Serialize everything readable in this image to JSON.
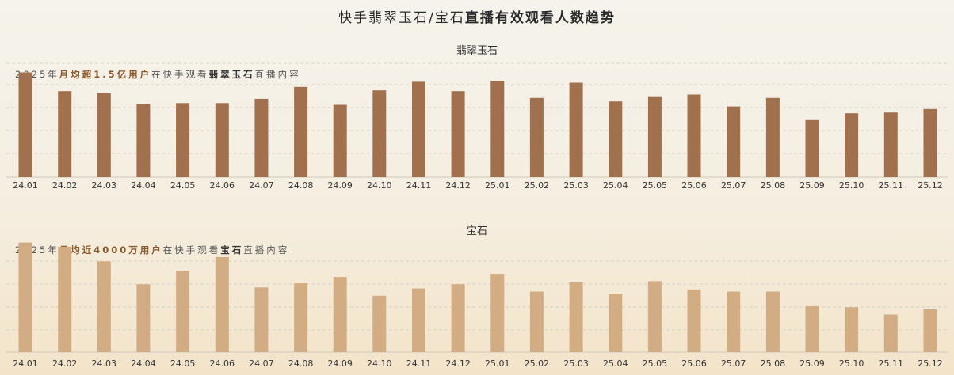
{
  "title": {
    "platform_part": "快手翡翠玉石/宝石",
    "bold_part": "直播有效观看人数趋势"
  },
  "charts": [
    {
      "id": "jade",
      "panel_title": "翡翠玉石",
      "subtitle": {
        "prefix": "2025年",
        "highlight": "月均超1.5亿用户",
        "middle": "在快手观看",
        "category": "翡翠玉石",
        "suffix": "直播内容"
      }
    },
    {
      "id": "gem",
      "panel_title": "宝石",
      "subtitle": {
        "prefix": "2025年",
        "highlight": "月均近4000万用户",
        "middle": "在快手观看",
        "category": "宝石",
        "suffix": "直播内容"
      }
    }
  ],
  "chart_data": [
    {
      "type": "bar",
      "title": "翡翠玉石",
      "categories": [
        "24.01",
        "24.02",
        "24.03",
        "24.04",
        "24.05",
        "24.06",
        "24.07",
        "24.08",
        "24.09",
        "24.10",
        "24.11",
        "24.12",
        "25.01",
        "25.02",
        "25.03",
        "25.04",
        "25.05",
        "25.06",
        "25.07",
        "25.08",
        "25.09",
        "25.10",
        "25.11",
        "25.12"
      ],
      "values": [
        123,
        101,
        99,
        86,
        87,
        87,
        92,
        106,
        85,
        102,
        112,
        101,
        113,
        93,
        111,
        89,
        95,
        97,
        83,
        93,
        67,
        75,
        76,
        80
      ],
      "ylim": [
        0,
        130
      ],
      "grid": true,
      "bar_color": "#a0714c"
    },
    {
      "type": "bar",
      "title": "宝石",
      "categories": [
        "24.01",
        "24.02",
        "24.03",
        "24.04",
        "24.05",
        "24.06",
        "24.07",
        "24.08",
        "24.09",
        "24.10",
        "24.11",
        "24.12",
        "25.01",
        "25.02",
        "25.03",
        "25.04",
        "25.05",
        "25.06",
        "25.07",
        "25.08",
        "25.09",
        "25.10",
        "25.11",
        "25.12"
      ],
      "values": [
        105,
        101,
        87,
        65,
        78,
        91,
        62,
        66,
        72,
        54,
        61,
        65,
        75,
        58,
        67,
        56,
        68,
        60,
        58,
        58,
        44,
        43,
        36,
        41
      ],
      "ylim": [
        0,
        110
      ],
      "grid": true,
      "bar_color": "#d2ac82"
    }
  ]
}
